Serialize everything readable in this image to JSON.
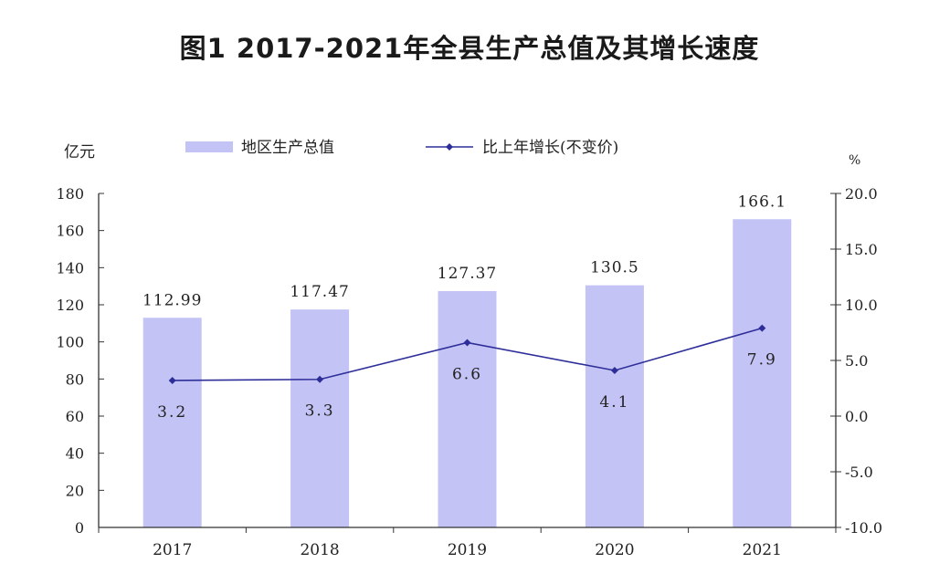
{
  "chart_data": {
    "type": "bar",
    "title": "图1 2017-2021年全县生产总值及其增长速度",
    "categories": [
      "2017",
      "2018",
      "2019",
      "2020",
      "2021"
    ],
    "series": [
      {
        "name": "地区生产总值",
        "type": "bar",
        "axis": "left",
        "values": [
          112.99,
          117.47,
          127.37,
          130.5,
          166.1
        ],
        "labels": [
          "112.99",
          "117.47",
          "127.37",
          "130.5",
          "166.1"
        ]
      },
      {
        "name": "比上年增长(不变价)",
        "type": "line",
        "axis": "right",
        "values": [
          3.2,
          3.3,
          6.6,
          4.1,
          7.9
        ],
        "labels": [
          "3.2",
          "3.3",
          "6.6",
          "4.1",
          "7.9"
        ]
      }
    ],
    "ylabel_left": "亿元",
    "ylabel_right": "%",
    "ylim_left": [
      0,
      180
    ],
    "ylim_right": [
      -10,
      20
    ],
    "yticks_left": [
      "0",
      "20",
      "40",
      "60",
      "80",
      "100",
      "120",
      "140",
      "160",
      "180"
    ],
    "yticks_right": [
      "-10.0",
      "-5.0",
      "0.0",
      "5.0",
      "10.0",
      "15.0",
      "20.0"
    ],
    "legend_position": "top",
    "grid": false,
    "colors": {
      "bar": "#c3c3f5",
      "line": "#2e2e9a",
      "axis": "#333333",
      "text": "#222222"
    }
  }
}
